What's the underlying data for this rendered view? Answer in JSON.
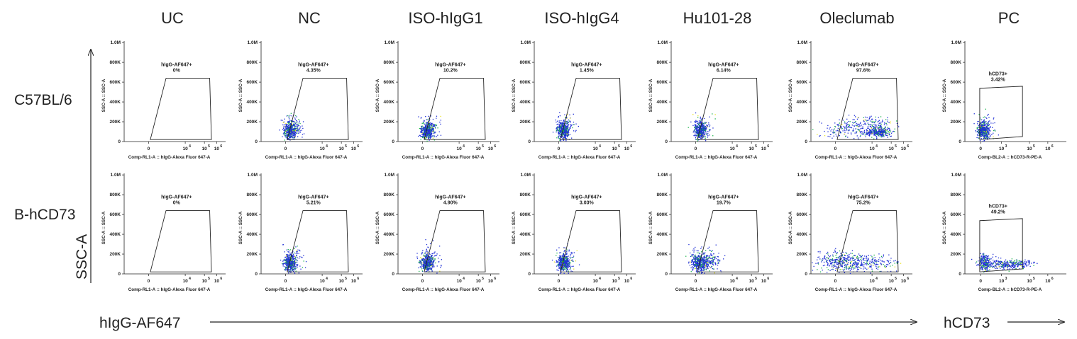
{
  "figure": {
    "col_titles": [
      "UC",
      "NC",
      "ISO-hIgG1",
      "ISO-hIgG4",
      "Hu101-28",
      "Oleclumab",
      "PC"
    ],
    "row_titles": [
      "C57BL/6",
      "B-hCD73"
    ],
    "left_axis_label": "SSC-A",
    "bottom_axis_label": "hIgG-AF647",
    "pc_axis_label": "hCD73"
  },
  "chart_data": {
    "type": "scatter",
    "description_free": true,
    "y_axis": {
      "label": "SSC-A :: SSC-A",
      "ticks": [
        "0",
        "200K",
        "400K",
        "600K",
        "800K",
        "1.0M"
      ],
      "ylim": [
        0,
        1000000
      ]
    },
    "x_axis_af647": {
      "label": "Comp-RL1-A :: hIgG-Alexa Fluor   647-A",
      "ticks": [
        "0",
        "10",
        "10",
        "10"
      ],
      "tick_exponents": [
        "",
        "4",
        "5",
        "6"
      ]
    },
    "x_axis_pe": {
      "label": "Comp-BL2-A :: hCD73-R-PE-A",
      "ticks": [
        "0",
        "10",
        "10",
        "10"
      ],
      "tick_exponents": [
        "",
        "3",
        "5",
        "6"
      ]
    },
    "panels": [
      {
        "row": 0,
        "col": 0,
        "gate": "hIgG-AF647+",
        "percent": "0%",
        "events": "none"
      },
      {
        "row": 0,
        "col": 1,
        "gate": "hIgG-AF647+",
        "percent": "4.35%",
        "events": "cluster"
      },
      {
        "row": 0,
        "col": 2,
        "gate": "hIgG-AF647+",
        "percent": "10.2%",
        "events": "cluster"
      },
      {
        "row": 0,
        "col": 3,
        "gate": "hIgG-AF647+",
        "percent": "1.45%",
        "events": "cluster"
      },
      {
        "row": 0,
        "col": 4,
        "gate": "hIgG-AF647+",
        "percent": "6.14%",
        "events": "cluster"
      },
      {
        "row": 0,
        "col": 5,
        "gate": "hIgG-AF647+",
        "percent": "97.6%",
        "events": "shifted"
      },
      {
        "row": 0,
        "col": 6,
        "gate": "hCD73+",
        "percent": "3.42%",
        "events": "cluster"
      },
      {
        "row": 1,
        "col": 0,
        "gate": "hIgG-AF647+",
        "percent": "0%",
        "events": "none"
      },
      {
        "row": 1,
        "col": 1,
        "gate": "hIgG-AF647+",
        "percent": "5.21%",
        "events": "cluster"
      },
      {
        "row": 1,
        "col": 2,
        "gate": "hIgG-AF647+",
        "percent": "4.90%",
        "events": "cluster"
      },
      {
        "row": 1,
        "col": 3,
        "gate": "hIgG-AF647+",
        "percent": "3.03%",
        "events": "cluster"
      },
      {
        "row": 1,
        "col": 4,
        "gate": "hIgG-AF647+",
        "percent": "19.7%",
        "events": "cluster"
      },
      {
        "row": 1,
        "col": 5,
        "gate": "hIgG-AF647+",
        "percent": "75.2%",
        "events": "broad"
      },
      {
        "row": 1,
        "col": 6,
        "gate": "hCD73+",
        "percent": "49.2%",
        "events": "broad"
      }
    ],
    "colors": {
      "low_density": "#1f2fd6",
      "mid_density": "#19b34a",
      "high_density": "#e8e320"
    }
  }
}
